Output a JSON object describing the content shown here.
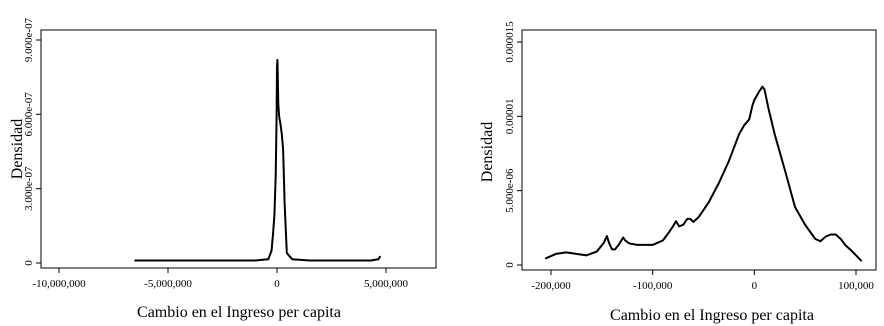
{
  "chart_data": [
    {
      "type": "line",
      "title": "",
      "xlabel": "Cambio en el Ingreso per capita",
      "ylabel": "Densidad",
      "xlim": [
        -10000000,
        5000000
      ],
      "ylim": [
        0,
        9e-07
      ],
      "xticks": [
        -10000000,
        -5000000,
        0,
        5000000
      ],
      "xtick_labels": [
        "-10,000,000",
        "-5,000,000",
        "0",
        "5,000,000"
      ],
      "yticks": [
        0,
        3e-07,
        6e-07,
        9e-07
      ],
      "ytick_labels": [
        "0",
        "3.000e-07",
        "6.000e-07",
        "9.000e-07"
      ],
      "grid": false,
      "series": [
        {
          "x": [
            -6500000,
            -3000000,
            -1000000,
            -400000,
            -250000,
            -180000,
            -120000,
            -60000,
            -20000,
            0,
            20000,
            60000,
            100000,
            160000,
            220000,
            280000,
            350000,
            450000,
            700000,
            1500000,
            3000000,
            4300000,
            4650000,
            4720000
          ],
          "y": [
            1e-08,
            1e-08,
            1e-08,
            1.5e-08,
            5e-08,
            1.2e-07,
            1.9e-07,
            3.5e-07,
            5.8e-07,
            7.9e-07,
            8.2e-07,
            6.4e-07,
            5.9e-07,
            5.6e-07,
            5.2e-07,
            4.6e-07,
            2.4e-07,
            4e-08,
            1.5e-08,
            1e-08,
            1e-08,
            1e-08,
            1.5e-08,
            2.5e-08
          ]
        }
      ]
    },
    {
      "type": "line",
      "title": "",
      "xlabel": "Cambio en el Ingreso per capita",
      "ylabel": "Densidad",
      "xlim": [
        -200000,
        100000
      ],
      "ylim": [
        0,
        1.5e-05
      ],
      "xticks": [
        -200000,
        -100000,
        0,
        100000
      ],
      "xtick_labels": [
        "-200,000",
        "-100,000",
        "0",
        "100,000"
      ],
      "yticks": [
        0,
        5e-06,
        1e-05,
        1.5e-05
      ],
      "ytick_labels": [
        "0",
        "5.000e-06",
        "0.00001",
        "0.000015"
      ],
      "grid": false,
      "series": [
        {
          "x": [
            -205000,
            -195000,
            -185000,
            -175000,
            -165000,
            -155000,
            -148000,
            -145000,
            -143000,
            -140000,
            -137000,
            -133000,
            -129000,
            -127000,
            -123000,
            -115000,
            -100000,
            -90000,
            -85000,
            -80000,
            -77000,
            -74000,
            -70000,
            -66000,
            -63000,
            -60000,
            -55000,
            -45000,
            -35000,
            -25000,
            -15000,
            -10000,
            -5000,
            -2000,
            0,
            5000,
            8000,
            10000,
            14000,
            20000,
            30000,
            40000,
            50000,
            60000,
            65000,
            70000,
            75000,
            80000,
            85000,
            90000,
            95000,
            100000,
            105000
          ],
          "y": [
            4.5e-07,
            7.5e-07,
            8.5e-07,
            7.5e-07,
            6.5e-07,
            9e-07,
            1.5e-06,
            1.95e-06,
            1.5e-06,
            1.05e-06,
            1.05e-06,
            1.4e-06,
            1.85e-06,
            1.65e-06,
            1.45e-06,
            1.35e-06,
            1.35e-06,
            1.65e-06,
            2.1e-06,
            2.6e-06,
            2.95e-06,
            2.6e-06,
            2.7e-06,
            3.1e-06,
            3.1e-06,
            2.9e-06,
            3.2e-06,
            4.2e-06,
            5.5e-06,
            7e-06,
            8.8e-06,
            9.4e-06,
            9.8e-06,
            1.07e-05,
            1.11e-05,
            1.17e-05,
            1.2e-05,
            1.18e-05,
            1.05e-05,
            8.8e-06,
            6.4e-06,
            3.9e-06,
            2.7e-06,
            1.75e-06,
            1.6e-06,
            1.9e-06,
            2.05e-06,
            2.05e-06,
            1.75e-06,
            1.3e-06,
            1e-06,
            6.5e-07,
            3e-07
          ]
        }
      ]
    }
  ]
}
